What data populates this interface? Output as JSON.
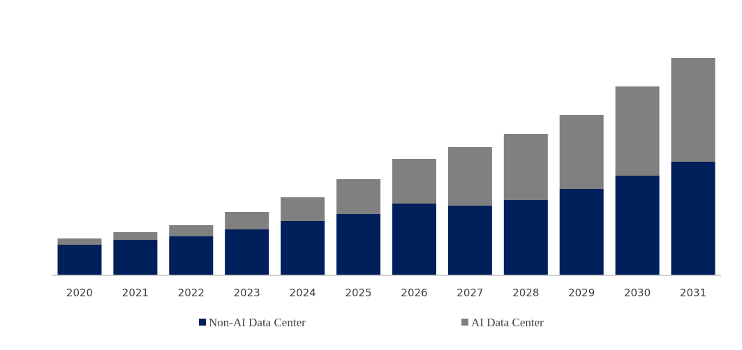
{
  "chart_data": {
    "type": "bar",
    "stacked": true,
    "title": "",
    "xlabel": "",
    "ylabel": "",
    "categories": [
      "2020",
      "2021",
      "2022",
      "2023",
      "2024",
      "2025",
      "2026",
      "2027",
      "2028",
      "2029",
      "2030",
      "2031"
    ],
    "series": [
      {
        "name": "Non-AI Data Center",
        "color": "#00205b",
        "values": [
          43,
          50,
          55,
          65,
          77,
          87,
          102,
          99,
          107,
          123,
          142,
          162
        ]
      },
      {
        "name": "AI Data Center",
        "color": "#808080",
        "values": [
          9,
          11,
          16,
          25,
          34,
          50,
          64,
          84,
          95,
          106,
          128,
          149
        ]
      }
    ],
    "ylim": [
      0,
      311
    ],
    "grid": false,
    "legend_position": "bottom"
  }
}
